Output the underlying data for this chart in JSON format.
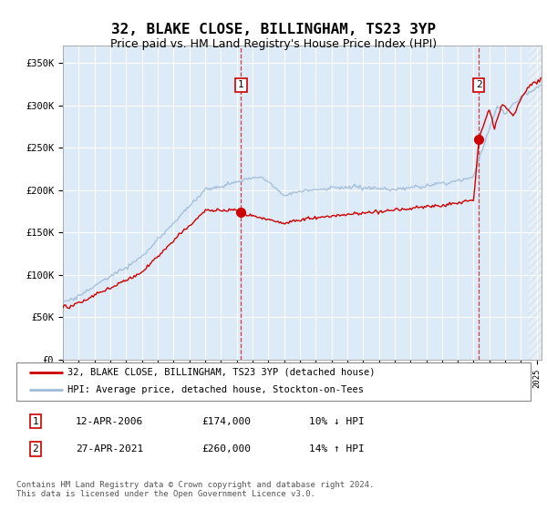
{
  "title": "32, BLAKE CLOSE, BILLINGHAM, TS23 3YP",
  "subtitle": "Price paid vs. HM Land Registry's House Price Index (HPI)",
  "ylabel_ticks": [
    "£0",
    "£50K",
    "£100K",
    "£150K",
    "£200K",
    "£250K",
    "£300K",
    "£350K"
  ],
  "ytick_values": [
    0,
    50000,
    100000,
    150000,
    200000,
    250000,
    300000,
    350000
  ],
  "ylim": [
    0,
    370000
  ],
  "xlim_start": 1995.0,
  "xlim_end": 2025.3,
  "sale1_date": 2006.28,
  "sale1_price": 174000,
  "sale1_label": "1",
  "sale2_date": 2021.32,
  "sale2_price": 260000,
  "sale2_label": "2",
  "hpi_color": "#a0bcd8",
  "price_color": "#cc0000",
  "marker_color": "#cc0000",
  "plot_bg": "#ddeaf7",
  "grid_color": "#ffffff",
  "legend1": "32, BLAKE CLOSE, BILLINGHAM, TS23 3YP (detached house)",
  "legend2": "HPI: Average price, detached house, Stockton-on-Tees",
  "table_row1": [
    "1",
    "12-APR-2006",
    "£174,000",
    "10% ↓ HPI"
  ],
  "table_row2": [
    "2",
    "27-APR-2021",
    "£260,000",
    "14% ↑ HPI"
  ],
  "footer": "Contains HM Land Registry data © Crown copyright and database right 2024.\nThis data is licensed under the Open Government Licence v3.0.",
  "hatch_start": 2024.5
}
